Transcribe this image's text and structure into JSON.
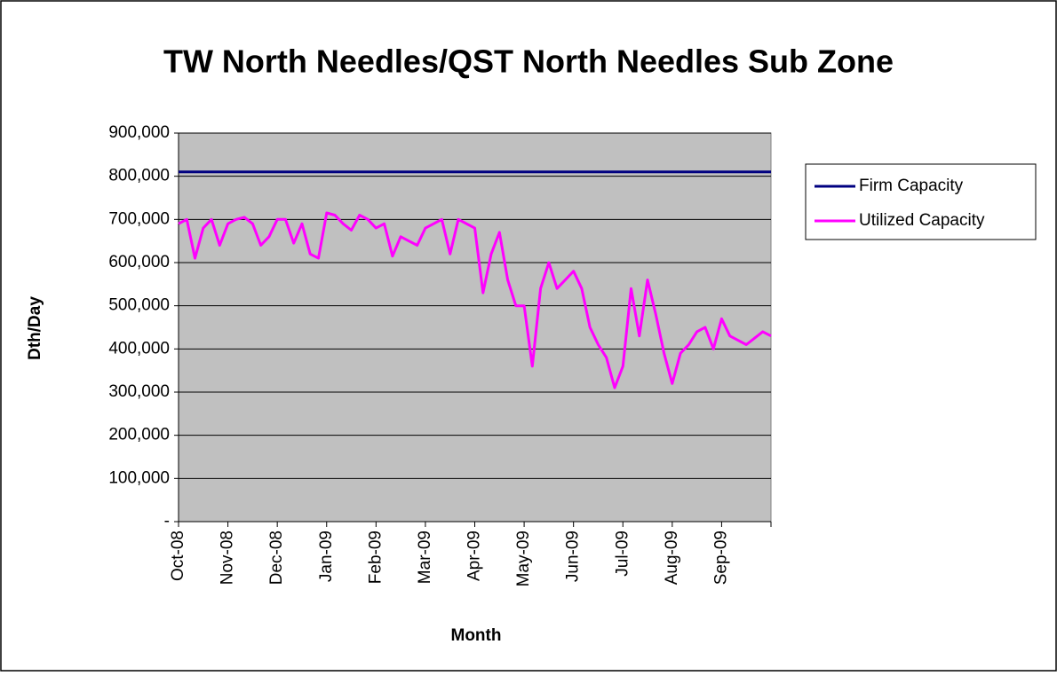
{
  "chart_data": {
    "type": "line",
    "title": "TW North Needles/QST North Needles Sub Zone",
    "x_label": "Month",
    "y_label": "Dth/Day",
    "categories": [
      "Oct-08",
      null,
      null,
      null,
      null,
      null,
      "Nov-08",
      null,
      null,
      null,
      null,
      null,
      "Dec-08",
      null,
      null,
      null,
      null,
      null,
      "Jan-09",
      null,
      null,
      null,
      null,
      null,
      "Feb-09",
      null,
      null,
      null,
      null,
      null,
      "Mar-09",
      null,
      null,
      null,
      null,
      null,
      "Apr-09",
      null,
      null,
      null,
      null,
      null,
      "May-09",
      null,
      null,
      null,
      null,
      null,
      "Jun-09",
      null,
      null,
      null,
      null,
      null,
      "Jul-09",
      null,
      null,
      null,
      null,
      null,
      "Aug-09",
      null,
      null,
      null,
      null,
      null,
      "Sep-09",
      null,
      null,
      null,
      null,
      null,
      null
    ],
    "series": [
      {
        "name": "Firm Capacity",
        "color": "#000080",
        "values": [
          810000,
          810000,
          810000,
          810000,
          810000,
          810000,
          810000,
          810000,
          810000,
          810000,
          810000,
          810000,
          810000,
          810000,
          810000,
          810000,
          810000,
          810000,
          810000,
          810000,
          810000,
          810000,
          810000,
          810000,
          810000,
          810000,
          810000,
          810000,
          810000,
          810000,
          810000,
          810000,
          810000,
          810000,
          810000,
          810000,
          810000,
          810000,
          810000,
          810000,
          810000,
          810000,
          810000,
          810000,
          810000,
          810000,
          810000,
          810000,
          810000,
          810000,
          810000,
          810000,
          810000,
          810000,
          810000,
          810000,
          810000,
          810000,
          810000,
          810000,
          810000,
          810000,
          810000,
          810000,
          810000,
          810000,
          810000,
          810000,
          810000,
          810000,
          810000,
          810000,
          810000
        ]
      },
      {
        "name": "Utilized Capacity",
        "color": "#ff00ff",
        "values": [
          690000,
          700000,
          610000,
          680000,
          700000,
          640000,
          690000,
          700000,
          705000,
          690000,
          640000,
          660000,
          700000,
          700000,
          645000,
          690000,
          620000,
          610000,
          715000,
          710000,
          690000,
          675000,
          710000,
          700000,
          680000,
          690000,
          615000,
          660000,
          650000,
          640000,
          680000,
          690000,
          700000,
          620000,
          700000,
          690000,
          680000,
          530000,
          620000,
          670000,
          560000,
          500000,
          500000,
          360000,
          540000,
          600000,
          540000,
          560000,
          580000,
          540000,
          450000,
          410000,
          380000,
          310000,
          360000,
          540000,
          430000,
          560000,
          480000,
          390000,
          320000,
          390000,
          410000,
          440000,
          450000,
          400000,
          470000,
          430000,
          420000,
          410000,
          425000,
          440000,
          430000
        ]
      }
    ],
    "ylim": [
      0,
      900000
    ],
    "yticks": [
      {
        "value": 0,
        "label": "-"
      },
      {
        "value": 100000,
        "label": "100,000"
      },
      {
        "value": 200000,
        "label": "200,000"
      },
      {
        "value": 300000,
        "label": "300,000"
      },
      {
        "value": 400000,
        "label": "400,000"
      },
      {
        "value": 500000,
        "label": "500,000"
      },
      {
        "value": 600000,
        "label": "600,000"
      },
      {
        "value": 700000,
        "label": "700,000"
      },
      {
        "value": 800000,
        "label": "800,000"
      },
      {
        "value": 900000,
        "label": "900,000"
      }
    ],
    "grid": true,
    "legend": "right"
  }
}
